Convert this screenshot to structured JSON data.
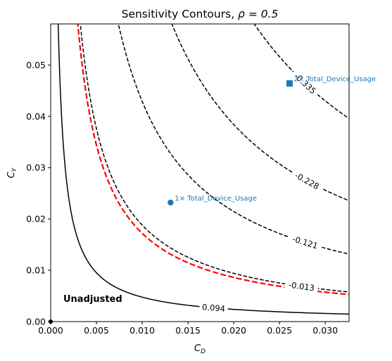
{
  "chart_data": {
    "type": "contour",
    "title": "Sensitivity Contours, ",
    "title_math": "ρ = 0.5",
    "xlabel": "C",
    "xlabel_sub": "D",
    "ylabel": "C",
    "ylabel_sub": "Y",
    "xlim": [
      0.0,
      0.0326
    ],
    "ylim": [
      0.0,
      0.058
    ],
    "xticks": [
      "0.000",
      "0.005",
      "0.010",
      "0.015",
      "0.020",
      "0.025",
      "0.030"
    ],
    "xtick_values": [
      0.0,
      0.005,
      0.01,
      0.015,
      0.02,
      0.025,
      0.03
    ],
    "yticks": [
      "0.00",
      "0.01",
      "0.02",
      "0.03",
      "0.04",
      "0.05"
    ],
    "ytick_values": [
      0.0,
      0.01,
      0.02,
      0.03,
      0.04,
      0.05
    ],
    "grid": false,
    "unadjusted_label": "Unadjusted",
    "contours": [
      {
        "label": "0.094",
        "style": "solid",
        "color": "#000000",
        "k": 4.76e-05,
        "label_at": 0.0178
      },
      {
        "label": "-0.013",
        "style": "dashed",
        "color": "#000000",
        "k": 0.000188,
        "label_at": 0.0274
      },
      {
        "label": "-0.121",
        "style": "dashed",
        "color": "#000000",
        "k": 0.000429,
        "label_at": 0.0278
      },
      {
        "label": "-0.228",
        "style": "dashed",
        "color": "#000000",
        "k": 0.000768,
        "label_at": 0.028
      },
      {
        "label": "-0.335",
        "style": "dashed",
        "color": "#000000",
        "k": 0.00129,
        "label_at": 0.0278
      }
    ],
    "threshold_curve": {
      "style": "dashed",
      "color": "#ff0000",
      "k": 0.000172
    },
    "benchmarks": [
      {
        "label": "1× Total_Device_Usage",
        "x": 0.0131,
        "y": 0.0232,
        "marker": "circle",
        "color": "#1f77b4"
      },
      {
        "label": "2× Total_Device_Usage",
        "x": 0.0261,
        "y": 0.0464,
        "marker": "square",
        "color": "#1f77b4"
      }
    ],
    "origin_point": {
      "x": 0.0,
      "y": 0.0,
      "color": "#000000"
    }
  }
}
